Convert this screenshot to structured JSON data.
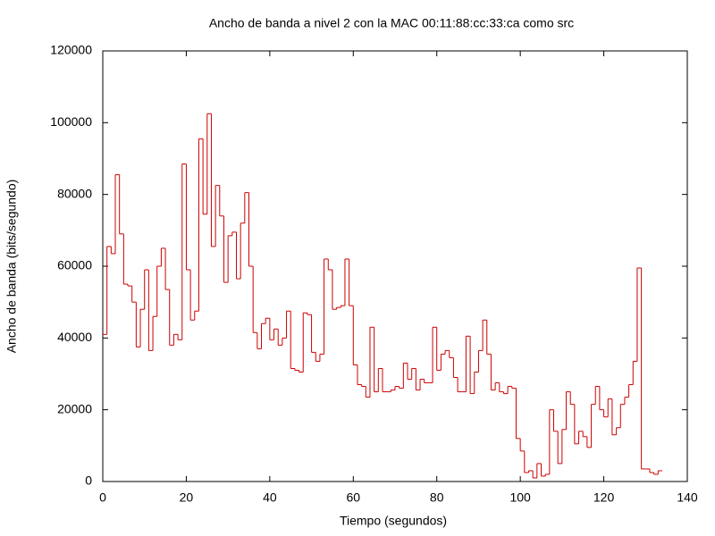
{
  "chart_data": {
    "type": "step",
    "title": "Ancho de banda a nivel 2 con la MAC 00:11:88:cc:33:ca como src",
    "x_label": "Tiempo (segundos)",
    "y_label": "Ancho de banda (bits/segundo)",
    "color": "#cc0000",
    "xlim": [
      0,
      140
    ],
    "xticks": [
      0,
      20,
      40,
      60,
      80,
      100,
      120,
      140
    ],
    "ylim": [
      0,
      120000
    ],
    "yticks": [
      0,
      20000,
      40000,
      60000,
      80000,
      100000,
      120000
    ],
    "grid": false,
    "x": [
      0,
      1,
      2,
      3,
      4,
      5,
      6,
      7,
      8,
      9,
      10,
      11,
      12,
      13,
      14,
      15,
      16,
      17,
      18,
      19,
      20,
      21,
      22,
      23,
      24,
      25,
      26,
      27,
      28,
      29,
      30,
      31,
      32,
      33,
      34,
      35,
      36,
      37,
      38,
      39,
      40,
      41,
      42,
      43,
      44,
      45,
      46,
      47,
      48,
      49,
      50,
      51,
      52,
      53,
      54,
      55,
      56,
      57,
      58,
      59,
      60,
      61,
      62,
      63,
      64,
      65,
      66,
      67,
      68,
      69,
      70,
      71,
      72,
      73,
      74,
      75,
      76,
      77,
      78,
      79,
      80,
      81,
      82,
      83,
      84,
      85,
      86,
      87,
      88,
      89,
      90,
      91,
      92,
      93,
      94,
      95,
      96,
      97,
      98,
      99,
      100,
      101,
      102,
      103,
      104,
      105,
      106,
      107,
      108,
      109,
      110,
      111,
      112,
      113,
      114,
      115,
      116,
      117,
      118,
      119,
      120,
      121,
      122,
      123,
      124,
      125,
      126,
      127,
      128,
      129,
      130,
      131,
      132,
      133
    ],
    "values": [
      41000,
      65500,
      63500,
      85500,
      69000,
      55000,
      54500,
      50000,
      37500,
      48000,
      59000,
      36500,
      46000,
      60000,
      65000,
      53500,
      38000,
      41000,
      39500,
      88500,
      59000,
      45000,
      47500,
      95500,
      74500,
      102500,
      65500,
      82500,
      74000,
      55500,
      68500,
      69500,
      56500,
      72000,
      80500,
      60000,
      41500,
      37000,
      44000,
      45500,
      39500,
      42500,
      38000,
      40000,
      47500,
      31500,
      31000,
      30500,
      47000,
      46500,
      36000,
      33500,
      35500,
      62000,
      59000,
      48000,
      48500,
      49000,
      62000,
      49000,
      32500,
      27000,
      26500,
      23500,
      43000,
      25000,
      31500,
      25000,
      25000,
      25500,
      26500,
      26000,
      33000,
      28500,
      31500,
      25500,
      28500,
      27500,
      27500,
      43000,
      31000,
      35500,
      36500,
      34500,
      29000,
      25000,
      25000,
      40500,
      24500,
      30500,
      36500,
      45000,
      35500,
      25500,
      27500,
      25000,
      24500,
      26500,
      26000,
      12000,
      8500,
      2500,
      3000,
      1000,
      5000,
      1500,
      2000,
      20000,
      14000,
      5000,
      14500,
      25000,
      21500,
      10500,
      14000,
      12500,
      9500,
      21500,
      26500,
      20000,
      18000,
      23000,
      13000,
      15000,
      21500,
      23500,
      27000,
      33500,
      59500,
      3500,
      3500,
      2500,
      2000,
      3000
    ]
  }
}
